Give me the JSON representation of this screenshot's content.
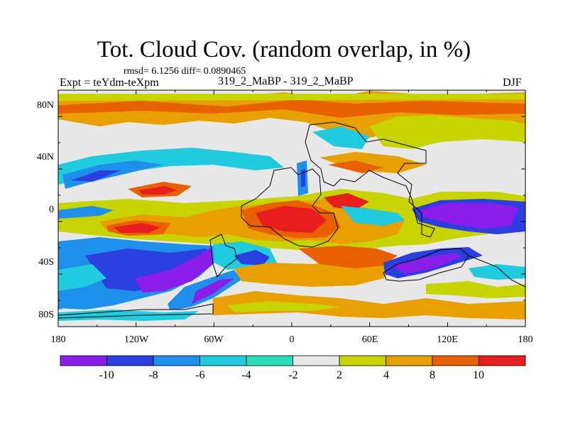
{
  "title": "Tot. Cloud Cov. (random overlap, in %)",
  "stats_line": "rmsd= 6.1256 diff= 0.0890465",
  "expt_line": "Expt = teYdm-teXpm",
  "cases_line": "319_2_MaBP - 319_2_MaBP",
  "season": "DJF",
  "y_ticks": [
    "80N",
    "40N",
    "0",
    "40S",
    "80S"
  ],
  "x_ticks": [
    "180",
    "120W",
    "60W",
    "0",
    "60E",
    "120E",
    "180"
  ],
  "colorbar": {
    "labels": [
      "-10",
      "-8",
      "-6",
      "-4",
      "-2",
      "2",
      "4",
      "8",
      "10"
    ],
    "colors": [
      "#8a1ee8",
      "#2b3fe0",
      "#1e8fea",
      "#20cbe0",
      "#28e0b8",
      "#e8e8e8",
      "#c8d400",
      "#e8a000",
      "#e86000",
      "#e81e1e"
    ]
  },
  "palette": {
    "strong_neg": "#8a1ee8",
    "neg2": "#2b3fe0",
    "neg3": "#1e8fea",
    "neg4": "#20cbe0",
    "neg5": "#28e0b8",
    "neutral": "#e8e8e8",
    "pos1": "#c8d400",
    "pos2": "#e8a000",
    "pos3": "#e86000",
    "pos4": "#e81e1e"
  }
}
